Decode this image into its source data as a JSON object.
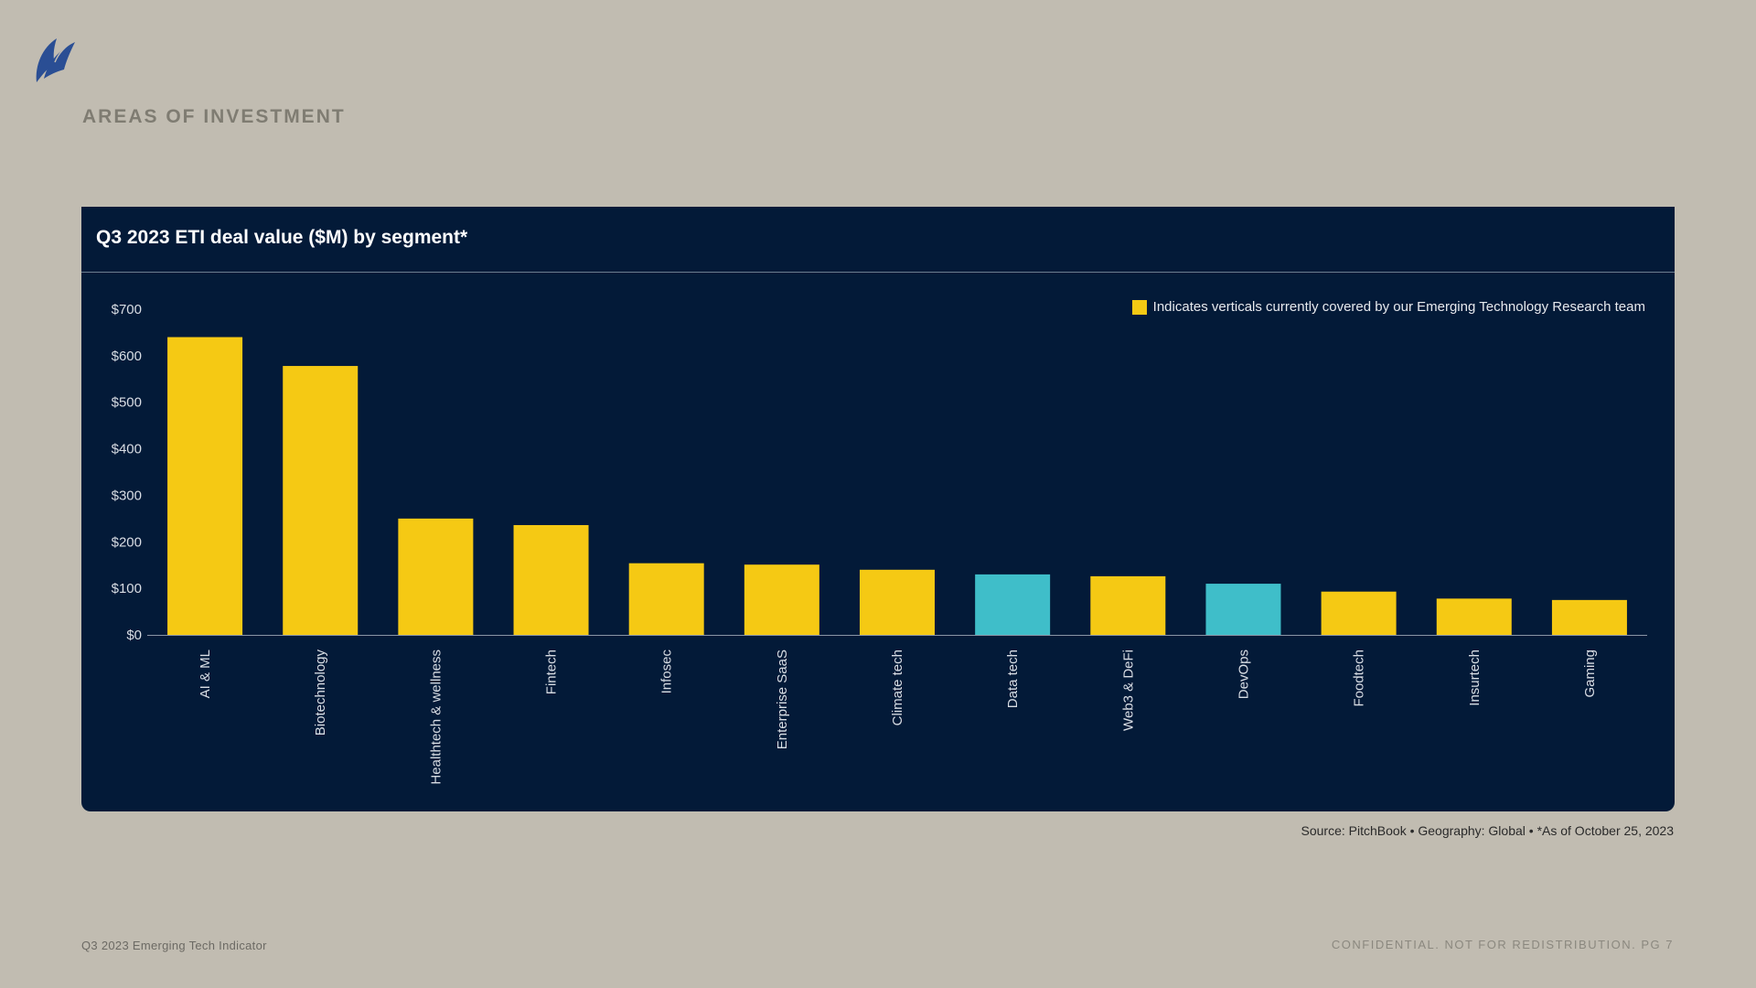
{
  "header": {
    "logo_icon": "sail-logo-icon",
    "section_title": "AREAS OF INVESTMENT"
  },
  "chart_data": {
    "type": "bar",
    "title": "Q3 2023 ETI deal value ($M) by segment*",
    "xlabel": "",
    "ylabel": "",
    "ylim": [
      0,
      700
    ],
    "yticks": [
      "$0",
      "$100",
      "$200",
      "$300",
      "$400",
      "$500",
      "$600",
      "$700"
    ],
    "categories": [
      "AI & ML",
      "Biotechnology",
      "Healthtech & wellness",
      "Fintech",
      "Infosec",
      "Enterprise SaaS",
      "Climate tech",
      "Data tech",
      "Web3 & DeFi",
      "DevOps",
      "Foodtech",
      "Insurtech",
      "Gaming"
    ],
    "values": [
      640,
      578,
      250,
      236,
      154,
      151,
      140,
      130,
      126,
      110,
      93,
      78,
      75
    ],
    "covered": [
      true,
      true,
      true,
      true,
      true,
      true,
      true,
      false,
      true,
      false,
      true,
      true,
      true
    ],
    "colors": {
      "covered": "#f5c914",
      "other": "#3fbec9"
    },
    "legend": {
      "text": "Indicates verticals currently covered by our Emerging Technology Research team",
      "position": "top-right"
    },
    "grid": false
  },
  "source_note": "Source: PitchBook  •  Geography: Global  •  *As of October 25, 2023",
  "footer": {
    "left": "Q3 2023 Emerging Tech Indicator",
    "right": "CONFIDENTIAL. NOT FOR REDISTRIBUTION.  PG 7"
  }
}
